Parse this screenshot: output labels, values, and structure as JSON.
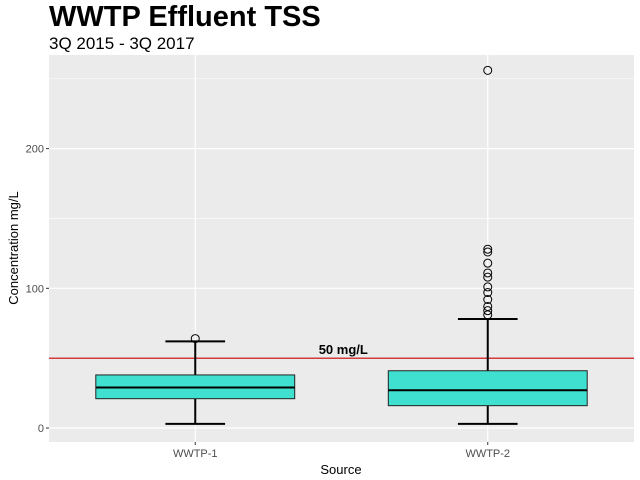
{
  "chart_data": {
    "type": "boxplot",
    "title": "WWTP Effluent TSS",
    "subtitle": "3Q 2015 - 3Q 2017",
    "xlabel": "Source",
    "ylabel": "Concentration mg/L",
    "categories": [
      "WWTP-1",
      "WWTP-2"
    ],
    "yticks": [
      0,
      100,
      200
    ],
    "ylim": [
      -10,
      267
    ],
    "grid": true,
    "fill_color": "#40E0D0",
    "reference_line": {
      "value": 50,
      "label": "50 mg/L",
      "color": "#cc0000"
    },
    "boxes": [
      {
        "category": "WWTP-1",
        "whisker_low": 3,
        "q1": 21,
        "median": 29,
        "q3": 38,
        "whisker_high": 62,
        "outliers": [
          64
        ]
      },
      {
        "category": "WWTP-2",
        "whisker_low": 3,
        "q1": 16,
        "median": 27,
        "q3": 41,
        "whisker_high": 78,
        "outliers": [
          81,
          84,
          87,
          92,
          97,
          101,
          108,
          111,
          118,
          126,
          128,
          256
        ]
      }
    ]
  }
}
